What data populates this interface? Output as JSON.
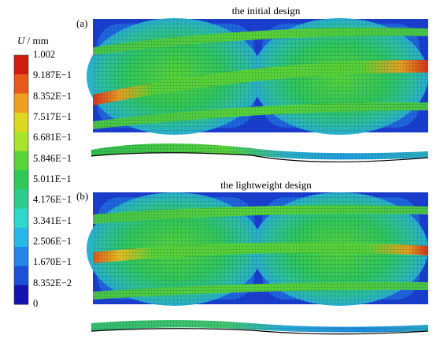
{
  "legend": {
    "symbol": "U",
    "unit": " / mm",
    "labels": [
      "1.002",
      "9.187E−1",
      "8.352E−1",
      "7.517E−1",
      "6.681E−1",
      "5.846E−1",
      "5.011E−1",
      "4.176E−1",
      "3.341E−1",
      "2.506E−1",
      "1.670E−1",
      "8.352E−2",
      "0"
    ],
    "colors": [
      "#d01c10",
      "#e8581a",
      "#f0a020",
      "#dcd820",
      "#a8e42a",
      "#58d438",
      "#30c858",
      "#2ccc8c",
      "#30d8cc",
      "#28b8e8",
      "#2486e8",
      "#1c50d8",
      "#1414b0"
    ]
  },
  "panels": [
    {
      "label": "(a)",
      "title": "the initial design"
    },
    {
      "label": "(b)",
      "title": "the lightweight design"
    }
  ],
  "colors": {
    "background": "#1a3fd0",
    "grid": "#0a1870",
    "beam_hot_initial": "#d8321a",
    "beam_hot_light": "#e05a1a"
  }
}
